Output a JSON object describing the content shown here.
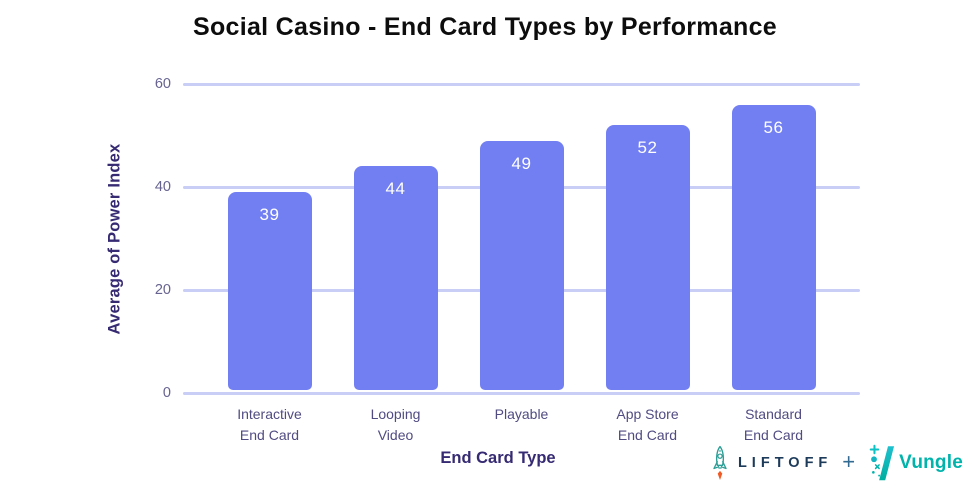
{
  "title": "Social Casino - End Card Types by Performance",
  "chart_data": {
    "type": "bar",
    "title": "Social Casino - End Card Types by Performance",
    "categories": [
      "Interactive End Card",
      "Looping Video",
      "Playable",
      "App Store End Card",
      "Standard End Card"
    ],
    "category_lines": [
      [
        "Interactive",
        "End Card"
      ],
      [
        "Looping",
        "Video"
      ],
      [
        "Playable"
      ],
      [
        "App Store",
        "End Card"
      ],
      [
        "Standard",
        "End Card"
      ]
    ],
    "values": [
      39,
      44,
      49,
      52,
      56
    ],
    "xlabel": "End Card Type",
    "ylabel": "Average of Power Index",
    "yticks": [
      0,
      20,
      40,
      60
    ],
    "ylim": [
      0,
      60
    ],
    "grid": true,
    "legend": "none",
    "bar_color": "#727ff2",
    "gridline_color": "#c8cef5",
    "value_label_color": "#ffffff",
    "axis_title_color": "#362a72",
    "tick_label_color": "#666390",
    "category_label_color": "#504b82"
  },
  "footer": {
    "liftoff_label": "LIFTOFF",
    "separator": "+",
    "vungle_label": "Vungle",
    "liftoff_text_color": "#1c3a5a",
    "liftoff_rocket_color": "#2d9e96",
    "rocket_flame_color": "#f15a24",
    "separator_color": "#336a92",
    "vungle_color": "#00b3ab"
  }
}
